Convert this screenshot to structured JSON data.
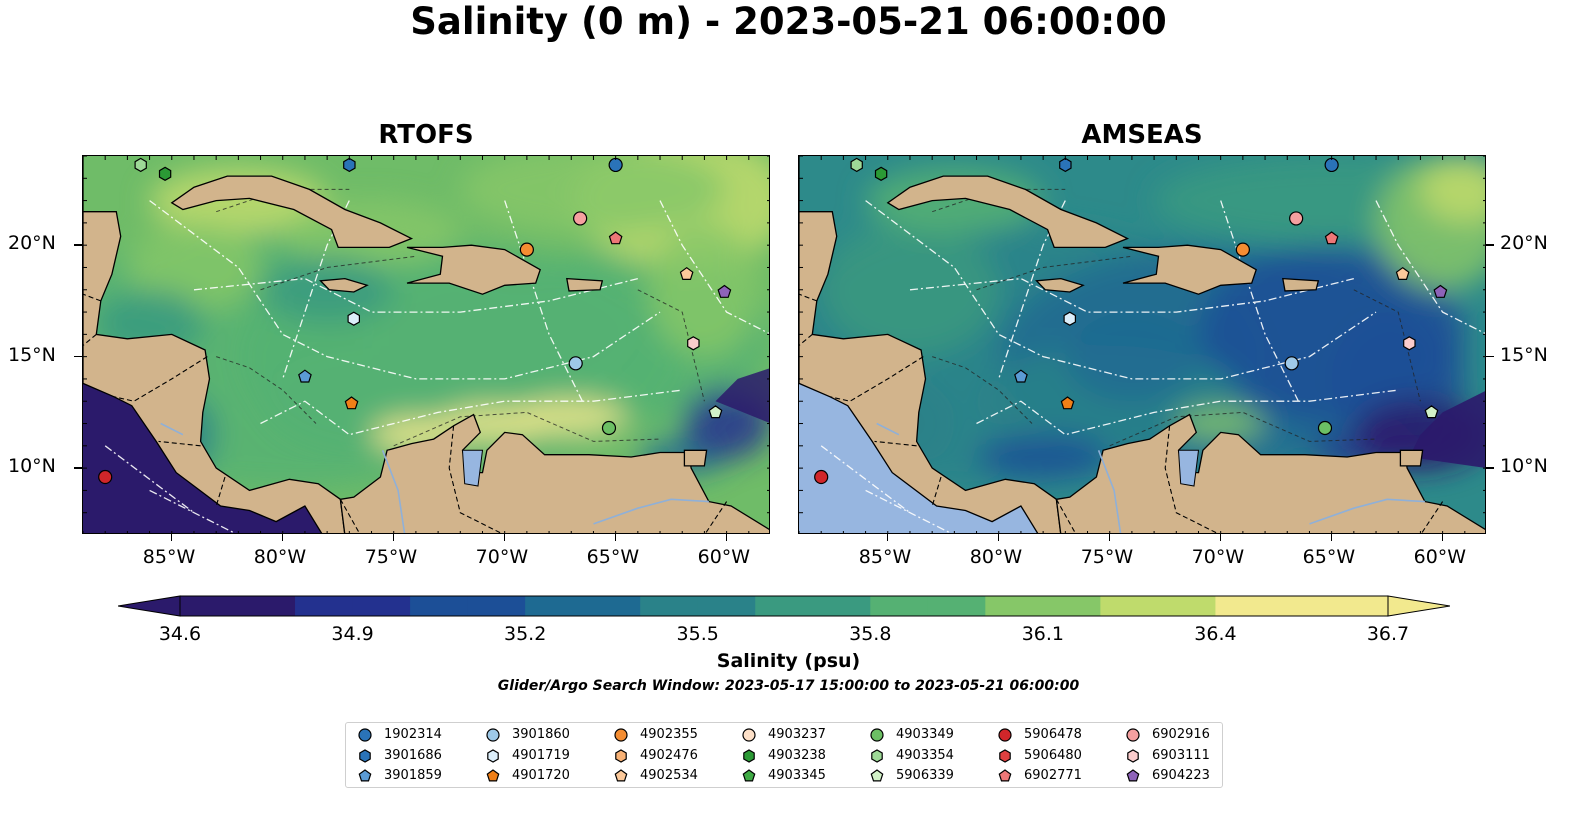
{
  "title": "Salinity (0 m) - 2023-05-21 06:00:00",
  "panels": [
    {
      "title": "RTOFS"
    },
    {
      "title": "AMSEAS"
    }
  ],
  "axes": {
    "lon_ticks": [
      "85°W",
      "80°W",
      "75°W",
      "70°W",
      "65°W",
      "60°W"
    ],
    "lat_ticks": [
      "20°N",
      "15°N",
      "10°N"
    ],
    "lon_range": [
      -89,
      -58
    ],
    "lat_range": [
      7,
      24
    ]
  },
  "colorbar": {
    "label": "Salinity (psu)",
    "ticks": [
      "34.6",
      "34.9",
      "35.2",
      "35.5",
      "35.8",
      "36.1",
      "36.4",
      "36.7"
    ],
    "range": [
      34.6,
      36.7
    ],
    "colormap": [
      "#2b1a6b",
      "#23318f",
      "#1c4f97",
      "#1e6a92",
      "#2a8289",
      "#3a9a80",
      "#55b173",
      "#86c768",
      "#bfdb6c",
      "#f2e98e"
    ]
  },
  "search_window": "Glider/Argo Search Window: 2023-05-17 15:00:00 to 2023-05-21 06:00:00",
  "colors": {
    "land": "#d2b48c",
    "pacific_amseas": "#97b6e0",
    "lakes": "#97b6e0"
  },
  "legend": [
    {
      "id": "1902314",
      "marker": "circle",
      "color": "#2a73b8"
    },
    {
      "id": "3901686",
      "marker": "hexagon",
      "color": "#2a73b8"
    },
    {
      "id": "3901859",
      "marker": "pentagon",
      "color": "#5b9bd5"
    },
    {
      "id": "3901860",
      "marker": "circle",
      "color": "#9ec9e8"
    },
    {
      "id": "4901719",
      "marker": "hexagon",
      "color": "#dceefa"
    },
    {
      "id": "4901720",
      "marker": "pentagon",
      "color": "#f07f17"
    },
    {
      "id": "4902355",
      "marker": "circle",
      "color": "#f48d32"
    },
    {
      "id": "4902476",
      "marker": "hexagon",
      "color": "#f8b276"
    },
    {
      "id": "4902534",
      "marker": "pentagon",
      "color": "#fcc99a"
    },
    {
      "id": "4903237",
      "marker": "circle",
      "color": "#fde0c8"
    },
    {
      "id": "4903238",
      "marker": "hexagon",
      "color": "#2b9a35"
    },
    {
      "id": "4903345",
      "marker": "pentagon",
      "color": "#3fab45"
    },
    {
      "id": "4903349",
      "marker": "circle",
      "color": "#6cbf64"
    },
    {
      "id": "4903354",
      "marker": "hexagon",
      "color": "#9ed997"
    },
    {
      "id": "5906339",
      "marker": "pentagon",
      "color": "#d3f2c8"
    },
    {
      "id": "5906478",
      "marker": "circle",
      "color": "#d1262a"
    },
    {
      "id": "5906480",
      "marker": "hexagon",
      "color": "#e04040"
    },
    {
      "id": "6902771",
      "marker": "pentagon",
      "color": "#ee7777"
    },
    {
      "id": "6902916",
      "marker": "circle",
      "color": "#f5a0a0"
    },
    {
      "id": "6903111",
      "marker": "hexagon",
      "color": "#fbcccc"
    },
    {
      "id": "6904223",
      "marker": "pentagon",
      "color": "#8e63b9"
    }
  ],
  "floats": [
    {
      "id": "1902314",
      "lon": -65.0,
      "lat": 23.6
    },
    {
      "id": "3901686",
      "lon": -77.0,
      "lat": 23.6
    },
    {
      "id": "3901860",
      "lon": -66.8,
      "lat": 14.7
    },
    {
      "id": "4901719",
      "lon": -76.8,
      "lat": 16.7
    },
    {
      "id": "3901859",
      "lon": -79.0,
      "lat": 14.1
    },
    {
      "id": "4901720",
      "lon": -76.9,
      "lat": 12.9
    },
    {
      "id": "4902355",
      "lon": -69.0,
      "lat": 19.8
    },
    {
      "id": "4902534",
      "lon": -61.8,
      "lat": 18.7
    },
    {
      "id": "4903238",
      "lon": -85.3,
      "lat": 23.2
    },
    {
      "id": "4903349",
      "lon": -65.3,
      "lat": 11.8
    },
    {
      "id": "4903354",
      "lon": -86.4,
      "lat": 23.6
    },
    {
      "id": "5906339",
      "lon": -60.5,
      "lat": 12.5
    },
    {
      "id": "5906478",
      "lon": -88.0,
      "lat": 9.6
    },
    {
      "id": "6902771",
      "lon": -65.0,
      "lat": 20.3
    },
    {
      "id": "6902916",
      "lon": -66.6,
      "lat": 21.2
    },
    {
      "id": "6903111",
      "lon": -61.5,
      "lat": 15.6
    },
    {
      "id": "6904223",
      "lon": -60.1,
      "lat": 17.9
    }
  ]
}
